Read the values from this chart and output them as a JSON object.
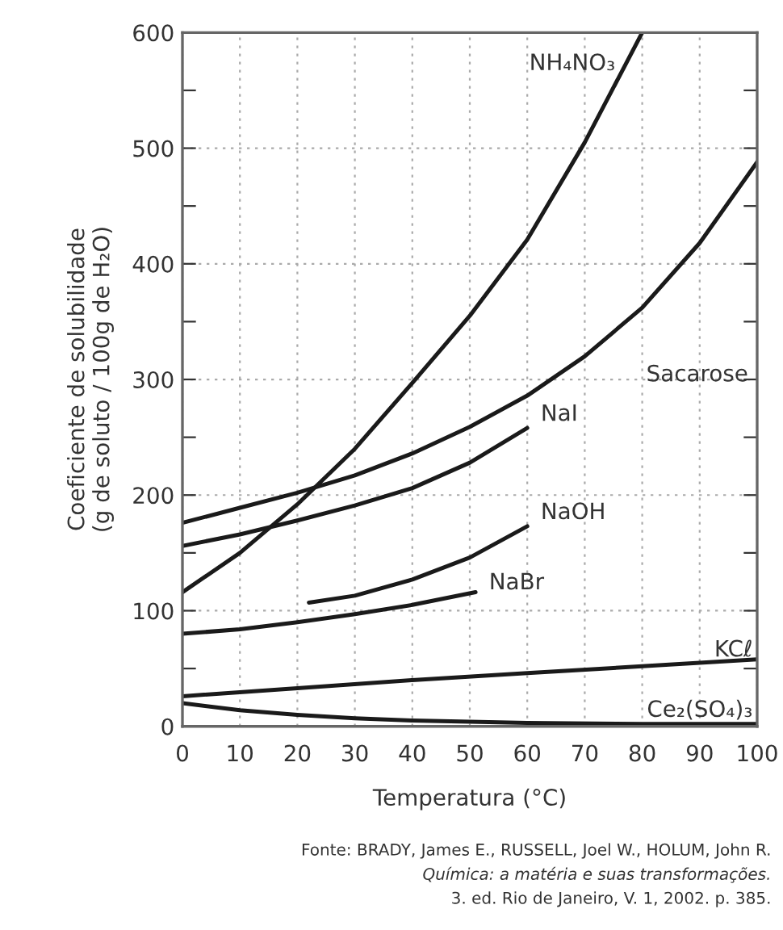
{
  "chart_data": {
    "type": "line",
    "xlabel": "Temperatura (°C)",
    "ylabel": "Coeficiente de solubilidade\n(g de soluto / 100g de H₂O)",
    "series": [
      {
        "name": "NH₄NO₃",
        "color": "#1a1a1a",
        "x": [
          0,
          10,
          20,
          30,
          40,
          50,
          60,
          70,
          80
        ],
        "values": [
          116,
          150,
          192,
          240,
          297,
          355,
          421,
          505,
          600
        ]
      },
      {
        "name": "Sacarose",
        "color": "#1a1a1a",
        "x": [
          0,
          10,
          20,
          30,
          40,
          50,
          60,
          70,
          80,
          90,
          100
        ],
        "values": [
          176,
          189,
          202,
          217,
          236,
          259,
          286,
          320,
          362,
          418,
          488
        ]
      },
      {
        "name": "NaI",
        "color": "#1a1a1a",
        "x": [
          0,
          10,
          20,
          30,
          40,
          50,
          60
        ],
        "values": [
          156,
          166,
          178,
          191,
          206,
          228,
          258
        ]
      },
      {
        "name": "NaOH",
        "color": "#1a1a1a",
        "x": [
          22,
          30,
          40,
          50,
          60
        ],
        "values": [
          107,
          113,
          127,
          146,
          173
        ]
      },
      {
        "name": "NaBr",
        "color": "#1a1a1a",
        "x": [
          0,
          10,
          20,
          30,
          40,
          51
        ],
        "values": [
          80,
          84,
          90,
          97,
          105,
          116
        ]
      },
      {
        "name": "KCℓ",
        "color": "#1a1a1a",
        "x": [
          0,
          20,
          40,
          60,
          80,
          100
        ],
        "values": [
          26,
          33,
          40,
          46,
          52,
          58
        ]
      },
      {
        "name": "Ce₂(SO₄)₃",
        "color": "#1a1a1a",
        "x": [
          0,
          10,
          20,
          30,
          40,
          60,
          80,
          100
        ],
        "values": [
          20,
          14,
          10,
          7,
          5,
          3,
          2,
          2
        ]
      }
    ],
    "xlim": [
      0,
      100
    ],
    "xticks": [
      0,
      10,
      20,
      30,
      40,
      50,
      60,
      70,
      80,
      90,
      100
    ],
    "ylim": [
      0,
      600
    ],
    "yticks": [
      0,
      {
        "value": 50,
        "label": null
      },
      100,
      {
        "value": 150,
        "label": null
      },
      200,
      {
        "value": 250,
        "label": null
      },
      300,
      {
        "value": 350,
        "label": null
      },
      400,
      {
        "value": 450,
        "label": null
      },
      500,
      {
        "value": 550,
        "label": null
      },
      600
    ],
    "grid": true,
    "legend": false,
    "marker": "none",
    "line_style": "solid",
    "annotations": [
      "Fonte: BRADY, James E., RUSSELL, Joel W., HOLUM, John R.",
      "Química: a matéria e suas transformações.",
      "3. ed. Rio de Janeiro, V. 1, 2002. p. 385."
    ]
  }
}
